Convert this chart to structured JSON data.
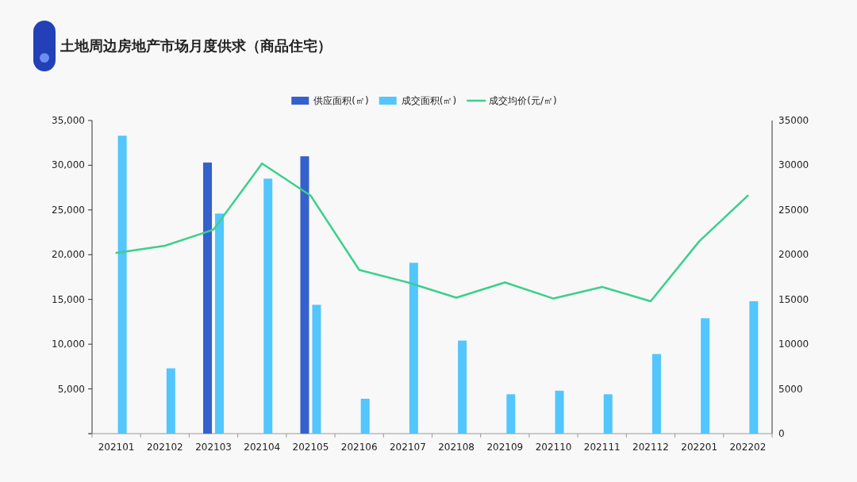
{
  "chart_data": {
    "type": "bar",
    "title": "土地周边房地产市场月度供求（商品住宅）",
    "categories": [
      "202101",
      "202102",
      "202103",
      "202104",
      "202105",
      "202106",
      "202107",
      "202108",
      "202109",
      "202110",
      "202111",
      "202112",
      "202201",
      "202202"
    ],
    "series": [
      {
        "name": "供应面积(㎡)",
        "color": "#3461cb",
        "values": [
          null,
          null,
          30300,
          null,
          31000,
          null,
          null,
          null,
          null,
          null,
          null,
          null,
          null,
          null
        ]
      },
      {
        "name": "成交面积(㎡)",
        "color": "#52c6fd",
        "values": [
          33300,
          7300,
          24600,
          28500,
          14400,
          3900,
          19100,
          10400,
          4400,
          4800,
          4400,
          8900,
          12900,
          14800
        ]
      },
      {
        "name": "成交均价(元/㎡)",
        "type": "line",
        "axis": "y2",
        "color": "#3ccf8e",
        "values": [
          20200,
          21000,
          22800,
          30200,
          26600,
          18300,
          16900,
          15200,
          16900,
          15100,
          16400,
          14800,
          21500,
          26600
        ]
      }
    ],
    "ylim": [
      0,
      35000
    ],
    "yticks": [
      {
        "value": 0,
        "label": null
      },
      {
        "value": 5000,
        "label": "5,000"
      },
      {
        "value": 10000,
        "label": "10,000"
      },
      {
        "value": 15000,
        "label": "15,000"
      },
      {
        "value": 20000,
        "label": "20,000"
      },
      {
        "value": 25000,
        "label": "25,000"
      },
      {
        "value": 30000,
        "label": "30,000"
      },
      {
        "value": 35000,
        "label": "35,000"
      }
    ],
    "y2lim": [
      0,
      35000
    ],
    "y2ticks": [
      0,
      5000,
      10000,
      15000,
      20000,
      25000,
      30000,
      35000
    ],
    "legend": "top",
    "grid": false
  }
}
